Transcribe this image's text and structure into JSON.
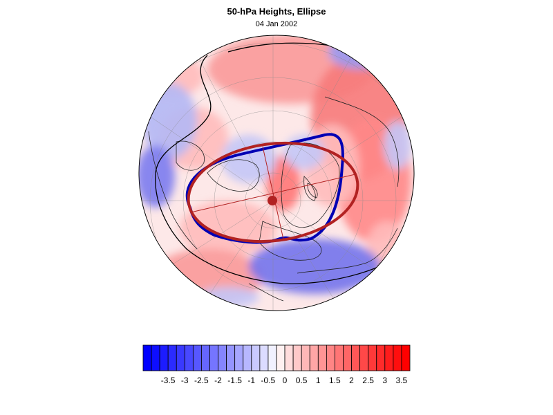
{
  "header": {
    "title": "50-hPa Heights, Ellipse",
    "date": "04 Jan 2002"
  },
  "colorbar": {
    "tick_labels": [
      "-3.5",
      "-3",
      "-2.5",
      "-2",
      "-1.5",
      "-1",
      "-0.5",
      "0",
      "0.5",
      "1",
      "1.5",
      "2",
      "2.5",
      "3",
      "3.5"
    ],
    "levels": [
      -4,
      -3.75,
      -3.5,
      -3.25,
      -3,
      -2.75,
      -2.5,
      -2.25,
      -2,
      -1.75,
      -1.5,
      -1.25,
      -1,
      -0.75,
      -0.5,
      -0.25,
      0,
      0.25,
      0.5,
      0.75,
      1,
      1.25,
      1.5,
      1.75,
      2,
      2.25,
      2.5,
      2.75,
      3,
      3.25,
      3.5,
      3.75,
      4
    ],
    "negative_color": "#0000ff",
    "positive_color": "#ff0000",
    "neutral_color": "#ffffff"
  },
  "map": {
    "projection": "polar-stereographic",
    "hemisphere": "north",
    "ellipse_blue_color": "#0000b4",
    "ellipse_red_color": "#b22222",
    "center_marker_color": "#b22222"
  }
}
